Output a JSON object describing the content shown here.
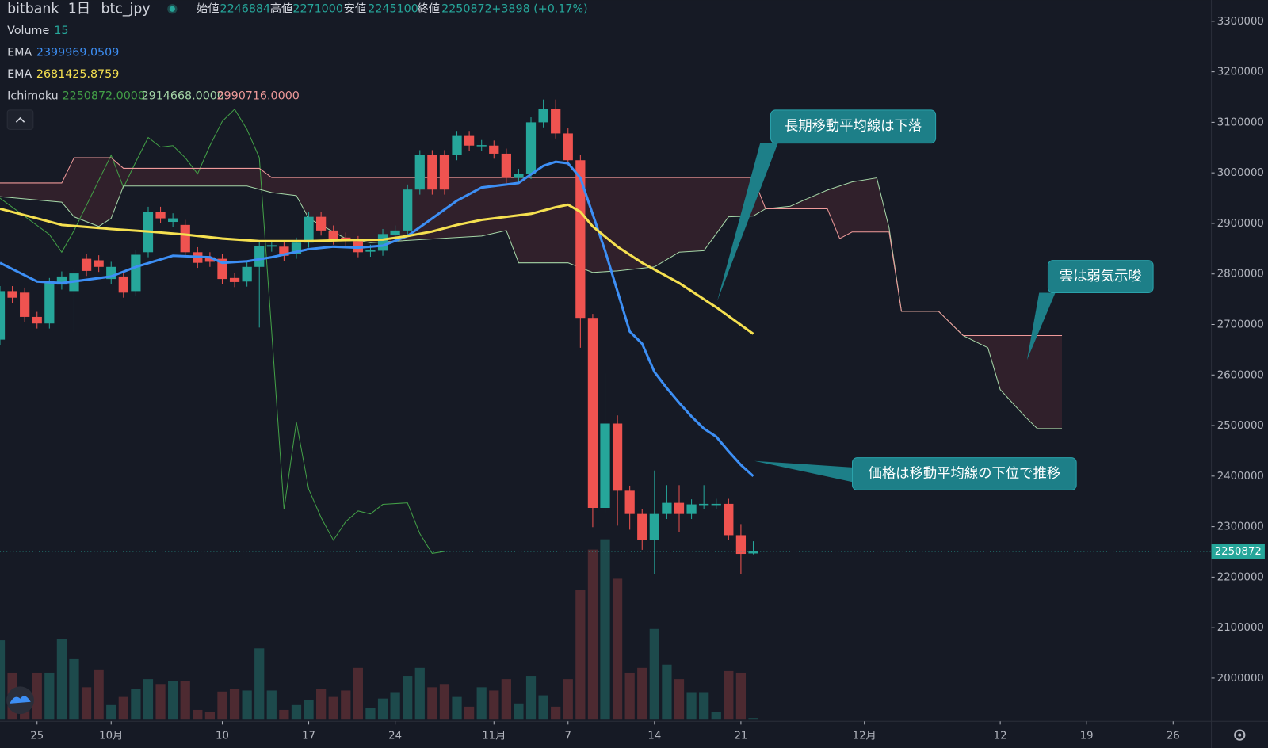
{
  "chart_data": {
    "type": "candlestick",
    "header": {
      "exchange": "bitbank",
      "interval": "1日",
      "symbol": "btc_jpy",
      "open_label": "始値",
      "high_label": "高値",
      "low_label": "安値",
      "close_label": "終値",
      "change": "+3898 (+0.17%)"
    },
    "background": "#161a25",
    "xlim": [
      0,
      98.1
    ],
    "xticks": [
      {
        "value": 3,
        "label": "25"
      },
      {
        "value": 9,
        "label": "10月"
      },
      {
        "value": 18,
        "label": "10"
      },
      {
        "value": 25,
        "label": "17"
      },
      {
        "value": 32,
        "label": "24"
      },
      {
        "value": 40,
        "label": "11月"
      },
      {
        "value": 46,
        "label": "7"
      },
      {
        "value": 53,
        "label": "14"
      },
      {
        "value": 60,
        "label": "21"
      },
      {
        "value": 70,
        "label": "12月"
      },
      {
        "value": 81,
        "label": "12"
      },
      {
        "value": 88,
        "label": "19"
      },
      {
        "value": 95,
        "label": "26"
      }
    ],
    "ylim": [
      1918000,
      3342000
    ],
    "yticks": [
      2000000,
      2100000,
      2200000,
      2300000,
      2400000,
      2500000,
      2600000,
      2700000,
      2800000,
      2900000,
      3000000,
      3100000,
      3200000,
      3300000
    ],
    "candles": {
      "up_color": "#26a69a",
      "down_color": "#ef5350",
      "x": [
        0,
        1,
        2,
        3,
        4,
        5,
        6,
        7,
        8,
        9,
        10,
        11,
        12,
        13,
        14,
        15,
        16,
        17,
        18,
        19,
        20,
        21,
        22,
        23,
        24,
        25,
        26,
        27,
        28,
        29,
        30,
        31,
        32,
        33,
        34,
        35,
        36,
        37,
        38,
        39,
        40,
        41,
        42,
        43,
        44,
        45,
        46,
        47,
        48,
        49,
        50,
        51,
        52,
        53,
        54,
        55,
        56,
        57,
        58,
        59,
        60,
        61
      ],
      "open": [
        2670000,
        2766000,
        2763000,
        2715000,
        2702000,
        2779000,
        2766000,
        2830000,
        2827000,
        2790000,
        2795000,
        2766000,
        2843000,
        2923000,
        2903000,
        2897000,
        2843000,
        2833000,
        2830000,
        2792000,
        2785000,
        2814000,
        2854000,
        2854000,
        2840000,
        2862000,
        2913000,
        2886000,
        2872000,
        2865000,
        2844000,
        2846000,
        2878000,
        2886000,
        2967000,
        3035000,
        3035000,
        3035000,
        3073000,
        3054000,
        3054000,
        3038000,
        2990000,
        2998000,
        3100000,
        3126000,
        3078000,
        3025000,
        2713000,
        2337000,
        2504000,
        2371000,
        2325000,
        2273000,
        2325000,
        2347000,
        2325000,
        2344000,
        2344000,
        2345000,
        2283000,
        2246884
      ],
      "high": [
        2776000,
        2776000,
        2773000,
        2725000,
        2792000,
        2805000,
        2811000,
        2840000,
        2837000,
        2824000,
        2805000,
        2848000,
        2933000,
        2933000,
        2920000,
        2907000,
        2853000,
        2843000,
        2840000,
        2802000,
        2824000,
        2866000,
        2867000,
        2864000,
        2872000,
        2923000,
        2923000,
        2896000,
        2882000,
        2875000,
        2858000,
        2889000,
        2896000,
        2977000,
        3045000,
        3045000,
        3045000,
        3083000,
        3083000,
        3065000,
        3064000,
        3048000,
        3008000,
        3110000,
        3145000,
        3145000,
        3088000,
        3035000,
        2721000,
        2603000,
        2520000,
        2381000,
        2335000,
        2411000,
        2382000,
        2382000,
        2354000,
        2382000,
        2355000,
        2355000,
        2305000,
        2271000
      ],
      "low": [
        2660000,
        2743000,
        2705000,
        2692000,
        2692000,
        2769000,
        2686000,
        2796000,
        2804000,
        2780000,
        2753000,
        2756000,
        2833000,
        2900000,
        2893000,
        2833000,
        2812000,
        2814000,
        2780000,
        2774000,
        2775000,
        2694000,
        2844000,
        2826000,
        2830000,
        2852000,
        2876000,
        2858000,
        2855000,
        2833000,
        2834000,
        2836000,
        2868000,
        2876000,
        2957000,
        2957000,
        2957000,
        3025000,
        3044000,
        3044000,
        3028000,
        2980000,
        2980000,
        2988000,
        3090000,
        3068000,
        3015000,
        2654000,
        2299000,
        2327000,
        2302000,
        2294000,
        2254000,
        2206000,
        2315000,
        2289000,
        2315000,
        2334000,
        2334000,
        2273000,
        2206000,
        2245100
      ],
      "close": [
        2766000,
        2753000,
        2715000,
        2702000,
        2782000,
        2795000,
        2801000,
        2806000,
        2814000,
        2814000,
        2763000,
        2838000,
        2923000,
        2910000,
        2910000,
        2843000,
        2822000,
        2824000,
        2790000,
        2784000,
        2814000,
        2856000,
        2857000,
        2836000,
        2862000,
        2913000,
        2886000,
        2868000,
        2865000,
        2843000,
        2848000,
        2879000,
        2886000,
        2967000,
        3035000,
        2967000,
        2967000,
        3073000,
        3054000,
        3055000,
        3038000,
        2990000,
        2998000,
        3100000,
        3126000,
        3078000,
        3025000,
        2713000,
        2337000,
        2504000,
        2371000,
        2325000,
        2273000,
        2325000,
        2347000,
        2325000,
        2344000,
        2345000,
        2345000,
        2283000,
        2246000,
        2250872
      ]
    },
    "volume": {
      "name": "Volume",
      "up_color": "#1d4a4c",
      "down_color": "#4d2a31",
      "value_color": "#26a69a",
      "values": [
        735,
        435,
        225,
        435,
        435,
        750,
        560,
        300,
        465,
        135,
        210,
        285,
        375,
        330,
        360,
        360,
        90,
        75,
        260,
        285,
        270,
        660,
        270,
        90,
        135,
        180,
        285,
        210,
        270,
        480,
        105,
        195,
        255,
        405,
        480,
        300,
        330,
        210,
        120,
        300,
        270,
        375,
        150,
        405,
        225,
        120,
        375,
        1200,
        1575,
        1670,
        1305,
        435,
        480,
        840,
        510,
        375,
        255,
        255,
        75,
        450,
        435,
        15
      ]
    },
    "series": [
      {
        "name": "EMA",
        "color": "#3d8ff5",
        "x": [
          0,
          3,
          5,
          9,
          11,
          14,
          17,
          18,
          20,
          22,
          25,
          27,
          29,
          31,
          33,
          35,
          37,
          39,
          41,
          42,
          44,
          45,
          46,
          47,
          48,
          49,
          50,
          51,
          52,
          53,
          54,
          55,
          56,
          57,
          58,
          59,
          60,
          61
        ],
        "values": [
          2822000,
          2785000,
          2782000,
          2795000,
          2814000,
          2836000,
          2833000,
          2822000,
          2825000,
          2833000,
          2849000,
          2854000,
          2852000,
          2856000,
          2875000,
          2910000,
          2945000,
          2971000,
          2977000,
          2980000,
          3014000,
          3022000,
          3019000,
          2990000,
          2918000,
          2846000,
          2766000,
          2686000,
          2662000,
          2606000,
          2574000,
          2545000,
          2518000,
          2494000,
          2478000,
          2449000,
          2422000,
          2399969.0509
        ]
      },
      {
        "name": "EMA",
        "color": "#f5e050",
        "x": [
          0,
          3,
          5,
          9,
          12,
          15,
          18,
          21,
          25,
          28,
          31,
          33,
          35,
          37,
          39,
          41,
          43,
          45,
          46,
          47,
          48,
          50,
          52,
          55,
          58,
          61
        ],
        "values": [
          2929000,
          2910000,
          2897000,
          2889000,
          2884000,
          2878000,
          2870000,
          2865000,
          2865000,
          2867000,
          2868000,
          2875000,
          2884000,
          2897000,
          2907000,
          2913000,
          2919000,
          2932000,
          2937000,
          2923000,
          2894000,
          2854000,
          2822000,
          2782000,
          2734000,
          2681425.8759
        ]
      }
    ],
    "ichimoku": {
      "name": "Ichimoku",
      "value_labels": [
        "2250872.0000",
        "2914668.0000",
        "2990716.0000"
      ],
      "cloud_color": "rgba(120,52,62,0.28)",
      "lines": [
        {
          "color": "#43a047",
          "x": [
            0,
            4,
            5,
            6,
            9,
            10,
            11,
            12,
            13,
            14,
            15,
            16,
            17,
            18,
            19,
            20,
            21,
            22,
            23,
            24,
            25,
            26,
            27,
            28,
            29,
            30,
            31,
            33,
            34,
            35,
            36
          ],
          "values": [
            2950000,
            2878000,
            2843000,
            2886000,
            3035000,
            2971000,
            3022000,
            3070000,
            3051000,
            3054000,
            3030000,
            2998000,
            3054000,
            3102000,
            3126000,
            3086000,
            3030000,
            2686000,
            2334000,
            2507000,
            2374000,
            2318000,
            2273000,
            2310000,
            2331000,
            2325000,
            2344000,
            2347000,
            2286000,
            2247000,
            2250872
          ]
        },
        {
          "color": "#a5d6a7",
          "x": [
            0,
            5,
            6,
            8,
            9,
            10,
            20,
            22,
            24,
            25,
            28,
            30,
            39,
            41,
            42,
            46,
            48,
            50,
            53,
            55,
            57,
            59,
            61,
            62,
            64,
            65,
            67,
            69,
            71,
            72,
            73,
            76,
            78,
            80,
            81,
            83,
            84,
            86
          ],
          "values": [
            2953000,
            2942000,
            2913000,
            2894000,
            2910000,
            2974000,
            2974000,
            2961000,
            2955000,
            2910000,
            2870000,
            2862000,
            2875000,
            2886000,
            2822000,
            2822000,
            2803000,
            2806000,
            2814000,
            2843000,
            2846000,
            2913000,
            2914668,
            2929000,
            2934000,
            2945000,
            2966000,
            2982000,
            2990000,
            2891000,
            2726000,
            2726000,
            2678000,
            2654000,
            2571000,
            2518000,
            2494000,
            2494000
          ]
        },
        {
          "color": "#ef9a9a",
          "x": [
            0,
            5,
            6,
            9,
            10,
            21,
            22,
            61,
            62,
            67,
            68,
            69,
            72,
            73,
            76,
            78,
            86
          ],
          "values": [
            2980000,
            2980000,
            3030000,
            3030000,
            3009000,
            3009000,
            2990716,
            2990716,
            2929000,
            2929000,
            2870000,
            2883000,
            2883000,
            2726000,
            2726000,
            2678000,
            2678000
          ]
        }
      ]
    },
    "annotations": [
      {
        "text": "長期移動平均線は下落"
      },
      {
        "text": "雲は弱気示唆"
      },
      {
        "text": "価格は移動平均線の下位で推移"
      }
    ]
  }
}
